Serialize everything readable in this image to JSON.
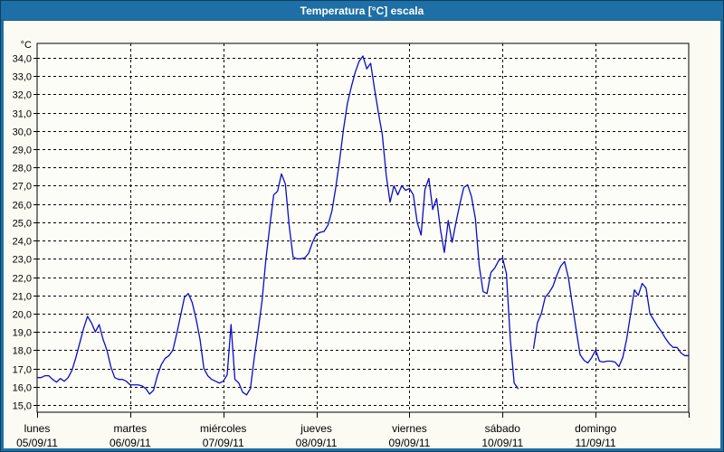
{
  "window": {
    "title": "Temperatura [°C] escala"
  },
  "colors": {
    "titlebar": "#1e6fa5",
    "frame": "#1e6fa5",
    "content_bg": "#fbfbf3",
    "plot_bg": "#fdfdf8",
    "grid": "#000000",
    "axis": "#000000",
    "label_text": "#000000",
    "title_text": "#ffffff",
    "line": "#0b0bc4"
  },
  "chart_data": {
    "type": "line",
    "title": "Temperatura [°C] escala",
    "grid": "dashed",
    "legend_position": "none",
    "y_axis": {
      "unit_label": "°C",
      "ylim": [
        14.6,
        34.8
      ],
      "tick_step": 1,
      "decimal_style": "comma",
      "ticks": [
        {
          "value": 34,
          "label": "34,0"
        },
        {
          "value": 33,
          "label": "33,0"
        },
        {
          "value": 32,
          "label": "32,0"
        },
        {
          "value": 31,
          "label": "31,0"
        },
        {
          "value": 30,
          "label": "30,0"
        },
        {
          "value": 29,
          "label": "29,0"
        },
        {
          "value": 28,
          "label": "28,0"
        },
        {
          "value": 27,
          "label": "27,0"
        },
        {
          "value": 26,
          "label": "26,0"
        },
        {
          "value": 25,
          "label": "25,0"
        },
        {
          "value": 24,
          "label": "24,0"
        },
        {
          "value": 23,
          "label": "23,0"
        },
        {
          "value": 22,
          "label": "22,0"
        },
        {
          "value": 21,
          "label": "21,0"
        },
        {
          "value": 20,
          "label": "20,0"
        },
        {
          "value": 19,
          "label": "19,0"
        },
        {
          "value": 18,
          "label": "18,0"
        },
        {
          "value": 17,
          "label": "17,0"
        },
        {
          "value": 16,
          "label": "16,0"
        },
        {
          "value": 15,
          "label": "15,0"
        }
      ]
    },
    "x_axis": {
      "span_days": 7,
      "days": [
        {
          "name": "lunes",
          "date": "05/09/11"
        },
        {
          "name": "martes",
          "date": "06/09/11"
        },
        {
          "name": "miércoles",
          "date": "07/09/11"
        },
        {
          "name": "jueves",
          "date": "08/09/11"
        },
        {
          "name": "viernes",
          "date": "09/09/11"
        },
        {
          "name": "sábado",
          "date": "10/09/11"
        },
        {
          "name": "domingo",
          "date": "11/09/11"
        }
      ]
    },
    "series": [
      {
        "name": "Temperatura",
        "unit": "°C",
        "sampling": "hourly starting lunes 05/09/11 00:00; null = data gap",
        "values": [
          16.5,
          16.5,
          16.6,
          16.6,
          16.4,
          16.25,
          16.45,
          16.3,
          16.5,
          16.9,
          17.6,
          18.4,
          19.2,
          19.85,
          19.5,
          19.0,
          19.4,
          18.6,
          18.0,
          17.1,
          16.5,
          16.4,
          16.4,
          16.3,
          16.1,
          16.1,
          16.1,
          16.05,
          15.9,
          15.6,
          15.8,
          16.6,
          17.2,
          17.55,
          17.7,
          18.0,
          18.9,
          19.9,
          20.9,
          21.1,
          20.6,
          19.7,
          18.6,
          17.0,
          16.6,
          16.4,
          16.3,
          16.2,
          16.3,
          16.65,
          19.4,
          16.4,
          16.2,
          15.7,
          15.55,
          15.9,
          17.6,
          19.1,
          20.7,
          23.0,
          24.8,
          26.5,
          26.7,
          27.65,
          27.1,
          24.8,
          23.1,
          23.0,
          23.0,
          23.05,
          23.3,
          23.9,
          24.35,
          24.45,
          24.5,
          24.85,
          25.6,
          26.9,
          28.4,
          30.1,
          31.5,
          32.4,
          33.2,
          33.8,
          34.1,
          33.4,
          33.7,
          32.3,
          31.0,
          29.8,
          27.6,
          26.1,
          27.0,
          26.5,
          27.0,
          26.75,
          26.85,
          26.5,
          25.0,
          24.3,
          26.8,
          27.4,
          25.7,
          26.3,
          24.6,
          23.35,
          25.1,
          23.9,
          25.0,
          26.0,
          26.9,
          27.05,
          26.4,
          25.2,
          22.6,
          21.2,
          21.1,
          22.25,
          22.5,
          22.9,
          23.05,
          22.2,
          18.6,
          16.2,
          15.9,
          null,
          null,
          null,
          18.1,
          19.5,
          20.0,
          20.9,
          21.15,
          21.5,
          22.1,
          22.6,
          22.85,
          21.95,
          20.5,
          19.1,
          17.75,
          17.45,
          17.3,
          17.6,
          18.0,
          17.4,
          17.35,
          17.4,
          17.4,
          17.35,
          17.1,
          17.6,
          18.6,
          19.95,
          21.3,
          21.0,
          21.65,
          21.4,
          20.0,
          19.65,
          19.3,
          19.0,
          18.65,
          18.35,
          18.15,
          18.15,
          17.85,
          17.7,
          17.7
        ]
      }
    ]
  }
}
